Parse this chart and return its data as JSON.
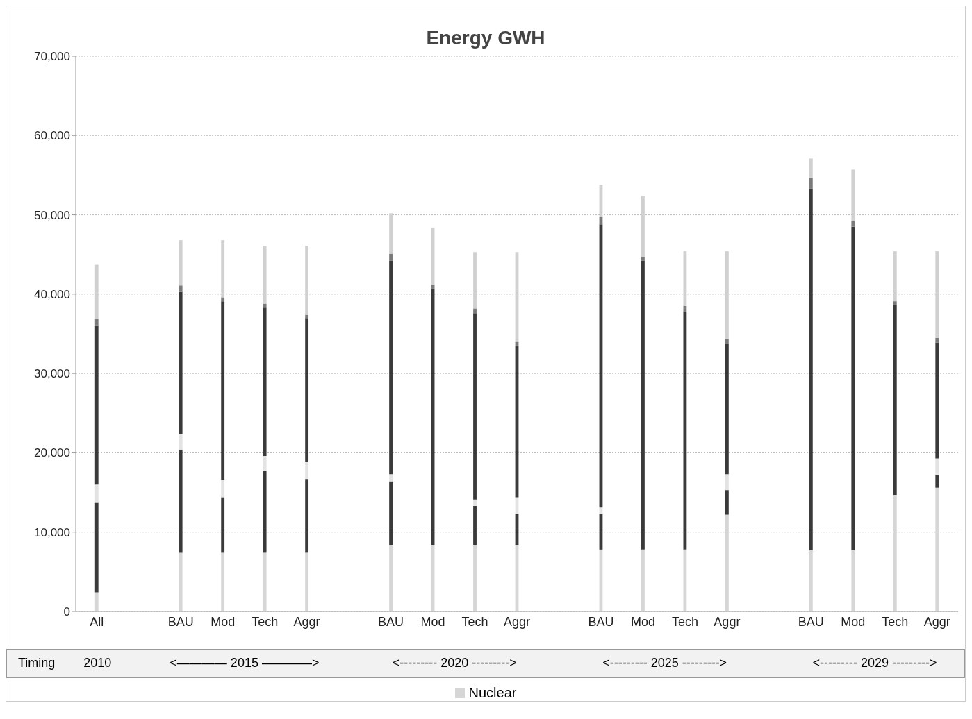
{
  "chart_data": {
    "type": "bar",
    "title": "Energy GWH",
    "stacked": true,
    "grid": "y",
    "legend": "bottom",
    "categories": [
      "All",
      null,
      "BAU",
      "Mod",
      "Tech",
      "Aggr",
      null,
      "BAU",
      "Mod",
      "Tech",
      "Aggr",
      null,
      "BAU",
      "Mod",
      "Tech",
      "Aggr",
      null,
      "BAU",
      "Mod",
      "Tech",
      "Aggr"
    ],
    "series": [
      {
        "name": "Nuclear",
        "color": "#d6d6d6",
        "values": [
          2400,
          null,
          7400,
          7400,
          7400,
          7400,
          null,
          8400,
          8400,
          8400,
          8400,
          null,
          7800,
          7800,
          7800,
          12200,
          null,
          7700,
          7700,
          14700,
          15600
        ]
      },
      {
        "color": "#3a3a3a",
        "values": [
          11300,
          null,
          13000,
          7000,
          10300,
          9300,
          null,
          8000,
          0,
          4900,
          3900,
          null,
          4500,
          0,
          0,
          3100,
          null,
          0,
          0,
          0,
          1600
        ]
      },
      {
        "color": "#e3e3e3",
        "values": [
          2300,
          null,
          2000,
          2200,
          1900,
          2200,
          null,
          900,
          0,
          800,
          2100,
          null,
          800,
          0,
          0,
          2000,
          null,
          0,
          0,
          0,
          2100
        ]
      },
      {
        "color": "#3a3a3a",
        "values": [
          20000,
          null,
          17900,
          22500,
          18700,
          18100,
          null,
          26900,
          32300,
          23500,
          19100,
          null,
          35700,
          36400,
          30000,
          16400,
          null,
          45600,
          40800,
          23900,
          14600
        ]
      },
      {
        "color": "#7a7a7a",
        "values": [
          900,
          null,
          800,
          500,
          500,
          400,
          null,
          900,
          500,
          600,
          500,
          null,
          900,
          500,
          700,
          700,
          null,
          1400,
          700,
          500,
          600
        ]
      },
      {
        "color": "#d0d0d0",
        "values": [
          6800,
          null,
          5700,
          7200,
          7300,
          8700,
          null,
          5100,
          7200,
          7100,
          11300,
          null,
          4100,
          7700,
          6900,
          11000,
          null,
          2400,
          6500,
          6300,
          10900
        ]
      }
    ],
    "ylim": [
      0,
      70000
    ],
    "yticks": [
      {
        "value": 0,
        "label": "0"
      },
      {
        "value": 10000,
        "label": "10,000"
      },
      {
        "value": 20000,
        "label": "20,000"
      },
      {
        "value": 30000,
        "label": "30,000"
      },
      {
        "value": 40000,
        "label": "40,000"
      },
      {
        "value": 50000,
        "label": "50,000"
      },
      {
        "value": 60000,
        "label": "60,000"
      },
      {
        "value": 70000,
        "label": "70,000"
      }
    ],
    "annotations": [
      "Timing",
      "2010",
      "<———— 2015 ————>",
      "<--------- 2020 --------->",
      "<--------- 2025 --------->",
      "<--------- 2029 --------->"
    ]
  }
}
